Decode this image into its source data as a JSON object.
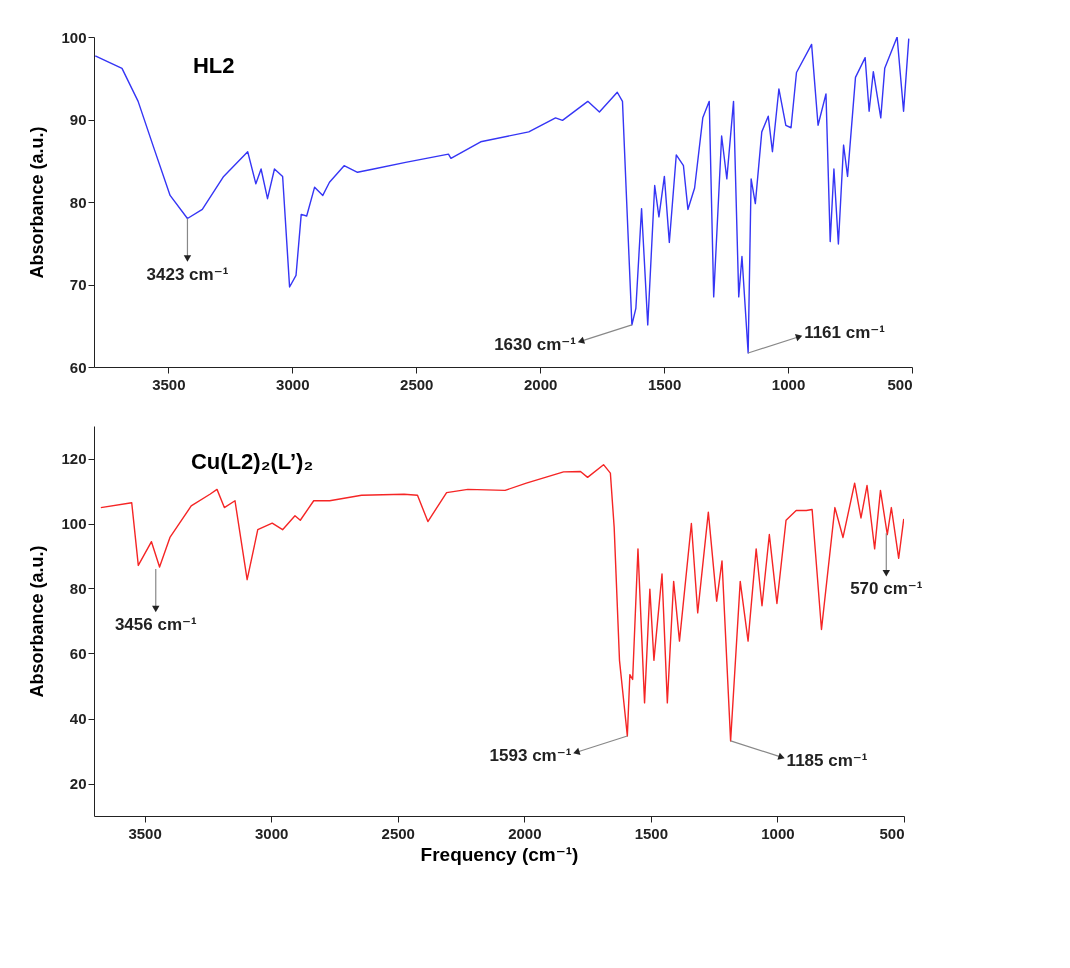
{
  "chart_data": [
    {
      "type": "line",
      "title": "HL2",
      "ylabel": "Absorbance (a.u.)",
      "xlim": [
        3800,
        500
      ],
      "xticks": [
        3500,
        3000,
        2500,
        2000,
        1500,
        1000,
        500
      ],
      "ylim": [
        60,
        100
      ],
      "yticks": [
        60,
        70,
        80,
        90,
        100
      ],
      "x": [
        3795,
        3687,
        3622,
        3558,
        3493,
        3423,
        3363,
        3277,
        3180,
        3147,
        3126,
        3100,
        3072,
        3039,
        3011,
        2985,
        2964,
        2942,
        2910,
        2877,
        2850,
        2791,
        2737,
        2672,
        2543,
        2370,
        2360,
        2240,
        2046,
        1938,
        1910,
        1808,
        1761,
        1689,
        1668,
        1653,
        1630,
        1614,
        1591,
        1566,
        1538,
        1521,
        1499,
        1479,
        1451,
        1422,
        1404,
        1377,
        1344,
        1318,
        1300,
        1268,
        1247,
        1220,
        1199,
        1186,
        1161,
        1149,
        1132,
        1106,
        1080,
        1063,
        1037,
        1009,
        988,
        966,
        905,
        879,
        847,
        830,
        815,
        797,
        776,
        760,
        728,
        689,
        673,
        656,
        626,
        610,
        560,
        534,
        513
      ],
      "series": [
        {
          "color": "#3535f5",
          "values": [
            97.7,
            96.2,
            92.2,
            86.5,
            80.8,
            78.0,
            79.1,
            83.1,
            86.1,
            82.2,
            84.0,
            80.4,
            84.0,
            83.1,
            69.7,
            71.1,
            78.5,
            78.3,
            81.8,
            80.8,
            82.4,
            84.4,
            83.6,
            84.0,
            84.8,
            85.8,
            85.3,
            87.3,
            88.5,
            90.2,
            89.9,
            92.2,
            90.9,
            93.3,
            92.2,
            81.4,
            65.1,
            67.1,
            79.2,
            65.1,
            82.0,
            78.2,
            83.1,
            75.1,
            85.7,
            84.4,
            79.1,
            81.7,
            90.2,
            92.2,
            68.5,
            88.0,
            82.8,
            92.2,
            68.5,
            73.4,
            61.7,
            82.8,
            79.8,
            88.5,
            90.4,
            86.1,
            93.7,
            89.3,
            89.0,
            95.7,
            99.1,
            89.3,
            93.1,
            75.2,
            84.0,
            74.9,
            86.9,
            83.1,
            95.1,
            97.5,
            91.0,
            95.8,
            90.2,
            96.2,
            100,
            91.0,
            99.8
          ]
        }
      ],
      "annotations": [
        {
          "text": "3423 cm⁻¹",
          "x": 3423,
          "y": 78
        },
        {
          "text": "1630 cm⁻¹",
          "x": 1630,
          "y": 65.1
        },
        {
          "text": "1161 cm⁻¹",
          "x": 1161,
          "y": 61.7
        }
      ]
    },
    {
      "type": "line",
      "title": "Cu(L2)₂(L’)₂",
      "xlabel": "Frequency (cm⁻¹)",
      "ylabel": "Absorbance (a.u.)",
      "xlim": [
        3700,
        500
      ],
      "xticks": [
        3500,
        3000,
        2500,
        2000,
        1500,
        1000,
        500
      ],
      "ylim": [
        10,
        130
      ],
      "yticks": [
        20,
        40,
        60,
        80,
        100,
        120
      ],
      "x": [
        3673,
        3551,
        3525,
        3473,
        3441,
        3400,
        3316,
        3242,
        3214,
        3185,
        3143,
        3095,
        3053,
        2996,
        2955,
        2906,
        2885,
        2832,
        2769,
        2643,
        2475,
        2422,
        2381,
        2307,
        2223,
        2076,
        1992,
        1845,
        1778,
        1750,
        1687,
        1660,
        1645,
        1624,
        1593,
        1583,
        1572,
        1551,
        1525,
        1504,
        1488,
        1456,
        1435,
        1410,
        1387,
        1340,
        1315,
        1273,
        1240,
        1219,
        1185,
        1147,
        1116,
        1084,
        1061,
        1032,
        1002,
        966,
        926,
        886,
        863,
        826,
        773,
        741,
        695,
        670,
        646,
        616,
        593,
        566,
        550,
        521,
        501
      ],
      "series": [
        {
          "color": "#f52525",
          "values": [
            104.9,
            106.4,
            87.1,
            94.4,
            86.6,
            95.7,
            105.4,
            109,
            110.5,
            104.9,
            107,
            82.7,
            98.1,
            100.1,
            98.1,
            102.4,
            101,
            107,
            107,
            108.7,
            109,
            108.7,
            100.6,
            109.5,
            110.5,
            110.2,
            112.4,
            115.9,
            116,
            114.2,
            118.1,
            115.5,
            98.8,
            57.9,
            34.6,
            53.5,
            52,
            92.2,
            44.8,
            79.8,
            57.9,
            84.5,
            44.8,
            82.2,
            63.8,
            100,
            72.5,
            103.5,
            76.1,
            88.5,
            33.1,
            82.2,
            63.8,
            92.2,
            74.7,
            96.6,
            75.4,
            101,
            104,
            104,
            104.3,
            67.4,
            104.9,
            95.7,
            112.4,
            101.7,
            111.7,
            92.2,
            110.2,
            96.6,
            104.9,
            89.3,
            101.4
          ]
        }
      ],
      "annotations": [
        {
          "text": "3456 cm⁻¹",
          "x": 3456,
          "y": 86
        },
        {
          "text": "1593 cm⁻¹",
          "x": 1593,
          "y": 34.6
        },
        {
          "text": "1185 cm⁻¹",
          "x": 1185,
          "y": 33.1
        },
        {
          "text": "570 cm⁻¹",
          "x": 570,
          "y": 97
        }
      ]
    }
  ]
}
